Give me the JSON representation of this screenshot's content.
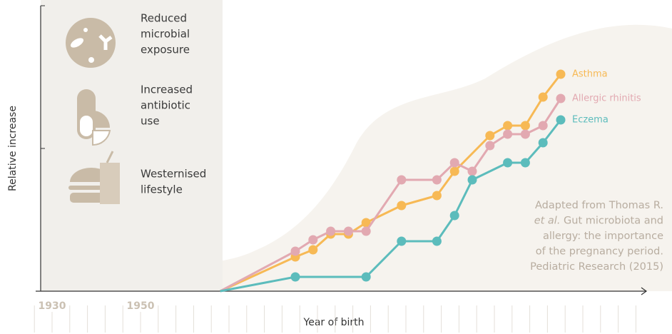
{
  "chart_data": {
    "type": "line",
    "xlabel": "Year of birth",
    "ylabel": "Relative increase",
    "xlim": [
      1926,
      2064
    ],
    "ylim": [
      0,
      100
    ],
    "xticks": [
      1930,
      1950
    ],
    "minor_xticks": [
      1926,
      1930,
      1934,
      1938,
      1942,
      1946,
      1950,
      1954,
      1958,
      1962,
      1966,
      1970,
      1974,
      1978,
      1982,
      1986,
      1990,
      1994,
      1998,
      2002,
      2006,
      2010,
      2014,
      2018,
      2022,
      2026,
      2030,
      2034,
      2038,
      2042,
      2046,
      2050,
      2054,
      2058,
      2062
    ],
    "series": [
      {
        "name": "Asthma",
        "color": "#f7b955",
        "x": [
          1968,
          1985,
          1989,
          1993,
          1997,
          2001,
          2009,
          2017,
          2021,
          2029,
          2033,
          2037,
          2041,
          2045
        ],
        "values": [
          0,
          12,
          14.5,
          20,
          20,
          24,
          30,
          33.5,
          42,
          54.5,
          58,
          58,
          68,
          76
        ]
      },
      {
        "name": "Allergic rhinitis",
        "color": "#e2a9b1",
        "x": [
          1968,
          1985,
          1989,
          1993,
          1997,
          2001,
          2009,
          2017,
          2021,
          2025,
          2029,
          2033,
          2037,
          2041,
          2045
        ],
        "values": [
          0,
          14,
          18,
          21,
          21,
          21,
          39,
          39,
          45,
          42,
          51,
          55,
          55,
          58,
          67.5
        ]
      },
      {
        "name": "Eczema",
        "color": "#5cbcbc",
        "x": [
          1968,
          1985,
          2001,
          2009,
          2017,
          2021,
          2025,
          2033,
          2037,
          2041,
          2045
        ],
        "values": [
          0,
          5,
          5,
          17.5,
          17.5,
          26.5,
          39,
          45,
          45,
          52,
          60
        ]
      }
    ],
    "factors": [
      [
        "Reduced",
        "microbial",
        "exposure"
      ],
      [
        "Increased",
        "antibiotic",
        "use"
      ],
      [
        "Westernised",
        "lifestyle"
      ]
    ],
    "note": {
      "line1": "Adapted from Thomas R.",
      "italic": "et al.",
      "line2": " Gut microbiota and",
      "line3": "allergy: the importance",
      "line4": "of the pregnancy period.",
      "line5": "Pediatric Research (2015)"
    }
  }
}
